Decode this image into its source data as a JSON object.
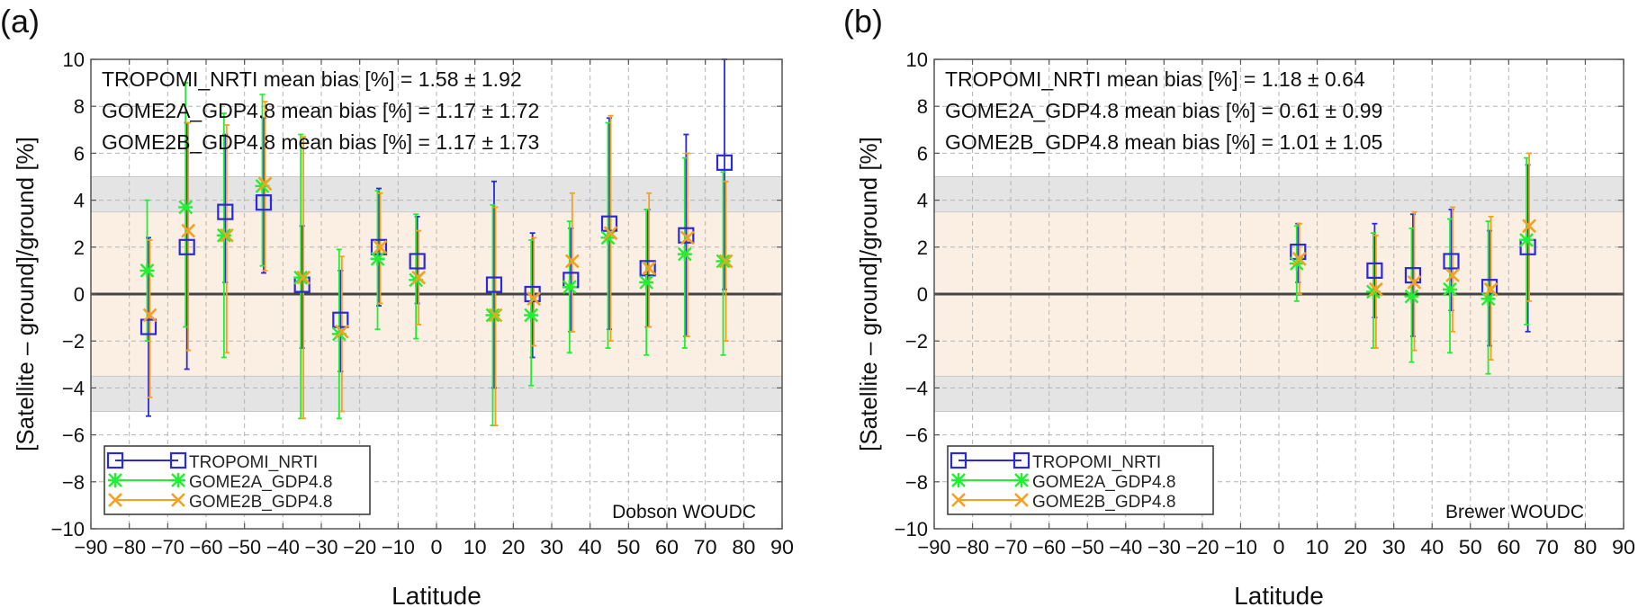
{
  "figure": {
    "y_axis_label": "[Satellite – ground]/ground [%]",
    "x_axis_label": "Latitude"
  },
  "colors": {
    "tropomi": "#2a2ad8",
    "gome2a": "#22ee33",
    "gome2b": "#f5a020",
    "band_inner": "#fbefe4",
    "band_outer": "#e4e4e4",
    "zero_line": "#444444"
  },
  "chart_data": [
    {
      "type": "scatter",
      "panel_label": "(a)",
      "station_label": "Dobson WOUDC",
      "xlim": [
        -90,
        90
      ],
      "ylim": [
        -10,
        10
      ],
      "x_ticks": [
        -90,
        -80,
        -70,
        -60,
        -50,
        -40,
        -30,
        -20,
        -10,
        0,
        10,
        20,
        30,
        40,
        50,
        60,
        70,
        80,
        90
      ],
      "y_ticks": [
        -10,
        -8,
        -6,
        -4,
        -2,
        0,
        2,
        4,
        6,
        8,
        10
      ],
      "bands": {
        "inner": [
          -3.5,
          3.5
        ],
        "outer": [
          -5,
          5
        ]
      },
      "grid": true,
      "legend_position": "bottom-left",
      "annotations": [
        {
          "name": "TROPOMI_NRTI",
          "text": " mean bias [%] = 1.58 ± 1.92"
        },
        {
          "name": "GOME2A_GDP4.8",
          "text": " mean bias [%] = 1.17 ± 1.72"
        },
        {
          "name": "GOME2B_GDP4.8",
          "text": " mean bias [%] = 1.17 ± 1.73"
        }
      ],
      "series": [
        {
          "name": "TROPOMI_NRTI",
          "marker": "square",
          "color_key": "tropomi",
          "x": [
            -75,
            -65,
            -55,
            -45,
            -35,
            -25,
            -15,
            -5,
            15,
            25,
            35,
            45,
            55,
            65,
            75
          ],
          "y": [
            -1.4,
            2.0,
            3.5,
            3.9,
            0.4,
            -1.1,
            2.0,
            1.4,
            0.4,
            0.0,
            0.6,
            3.0,
            1.1,
            2.5,
            5.6
          ],
          "ylow": [
            -5.2,
            -3.2,
            0.5,
            0.9,
            -2.3,
            -3.3,
            -0.5,
            -0.4,
            -4.0,
            -2.7,
            -1.6,
            -1.5,
            -1.4,
            -1.8,
            0.2
          ],
          "yhigh": [
            2.4,
            7.3,
            6.8,
            7.5,
            2.9,
            1.0,
            4.5,
            3.3,
            4.8,
            2.6,
            2.8,
            7.5,
            3.6,
            6.8,
            10.0
          ]
        },
        {
          "name": "GOME2A_GDP4.8",
          "marker": "asterisk",
          "color_key": "gome2a",
          "x": [
            -75,
            -65,
            -55,
            -45,
            -35,
            -25,
            -15,
            -5,
            15,
            25,
            35,
            45,
            55,
            65,
            75
          ],
          "y": [
            1.0,
            3.7,
            2.5,
            4.6,
            0.7,
            -1.7,
            1.5,
            0.6,
            -0.9,
            -0.9,
            0.3,
            2.4,
            0.5,
            1.7,
            1.4
          ],
          "ylow": [
            -2.0,
            -1.4,
            -2.7,
            1.2,
            -5.3,
            -5.3,
            -1.5,
            -1.9,
            -5.6,
            -3.9,
            -2.5,
            -2.3,
            -2.6,
            -2.3,
            -2.6
          ],
          "yhigh": [
            4.0,
            9.0,
            7.7,
            8.5,
            6.8,
            1.9,
            4.4,
            3.4,
            3.8,
            2.3,
            3.1,
            7.3,
            3.6,
            5.8,
            5.2
          ]
        },
        {
          "name": "GOME2B_GDP4.8",
          "marker": "x",
          "color_key": "gome2b",
          "x": [
            -75,
            -65,
            -55,
            -45,
            -35,
            -25,
            -15,
            -5,
            15,
            25,
            35,
            45,
            55,
            65,
            75
          ],
          "y": [
            -0.9,
            2.7,
            2.5,
            4.7,
            0.7,
            -1.6,
            2.0,
            0.7,
            -0.9,
            -0.2,
            1.4,
            2.6,
            1.1,
            2.4,
            1.4
          ],
          "ylow": [
            -4.4,
            -2.4,
            -2.5,
            1.0,
            -5.3,
            -5.0,
            -0.4,
            -1.3,
            -5.6,
            -2.2,
            -1.6,
            -2.0,
            -1.4,
            -1.8,
            -2.0
          ],
          "yhigh": [
            2.3,
            7.3,
            7.2,
            8.2,
            6.7,
            1.6,
            4.3,
            2.7,
            3.7,
            2.4,
            4.3,
            7.6,
            4.3,
            6.0,
            4.8
          ]
        }
      ]
    },
    {
      "type": "scatter",
      "panel_label": "(b)",
      "station_label": "Brewer WOUDC",
      "xlim": [
        -90,
        90
      ],
      "ylim": [
        -10,
        10
      ],
      "x_ticks": [
        -90,
        -80,
        -70,
        -60,
        -50,
        -40,
        -30,
        -20,
        -10,
        0,
        10,
        20,
        30,
        40,
        50,
        60,
        70,
        80,
        90
      ],
      "y_ticks": [
        -10,
        -8,
        -6,
        -4,
        -2,
        0,
        2,
        4,
        6,
        8,
        10
      ],
      "bands": {
        "inner": [
          -3.5,
          3.5
        ],
        "outer": [
          -5,
          5
        ]
      },
      "grid": true,
      "legend_position": "bottom-left",
      "annotations": [
        {
          "name": "TROPOMI_NRTI",
          "text": " mean bias [%] = 1.18 ± 0.64"
        },
        {
          "name": "GOME2A_GDP4.8",
          "text": " mean bias [%] = 0.61 ± 0.99"
        },
        {
          "name": "GOME2B_GDP4.8",
          "text": " mean bias [%] = 1.01 ± 1.05"
        }
      ],
      "series": [
        {
          "name": "TROPOMI_NRTI",
          "marker": "square",
          "color_key": "tropomi",
          "x": [
            5,
            25,
            35,
            45,
            55,
            65
          ],
          "y": [
            1.8,
            1.0,
            0.8,
            1.4,
            0.3,
            2.0
          ],
          "ylow": [
            0.5,
            -1.0,
            -1.8,
            -0.7,
            -2.2,
            -1.6
          ],
          "yhigh": [
            3.0,
            3.0,
            3.4,
            3.6,
            2.7,
            5.5
          ]
        },
        {
          "name": "GOME2A_GDP4.8",
          "marker": "asterisk",
          "color_key": "gome2a",
          "x": [
            5,
            25,
            35,
            45,
            55,
            65
          ],
          "y": [
            1.3,
            0.1,
            -0.1,
            0.2,
            -0.2,
            2.3
          ],
          "ylow": [
            -0.3,
            -2.3,
            -2.9,
            -2.5,
            -3.4,
            -1.3
          ],
          "yhigh": [
            2.9,
            2.6,
            2.8,
            3.2,
            3.1,
            5.8
          ]
        },
        {
          "name": "GOME2B_GDP4.8",
          "marker": "x",
          "color_key": "gome2b",
          "x": [
            5,
            25,
            35,
            45,
            55,
            65
          ],
          "y": [
            1.5,
            0.2,
            0.5,
            0.8,
            0.2,
            2.9
          ],
          "ylow": [
            0.0,
            -2.3,
            -2.4,
            -1.6,
            -2.8,
            -0.3
          ],
          "yhigh": [
            3.0,
            2.5,
            3.5,
            3.7,
            3.3,
            6.0
          ]
        }
      ]
    }
  ]
}
